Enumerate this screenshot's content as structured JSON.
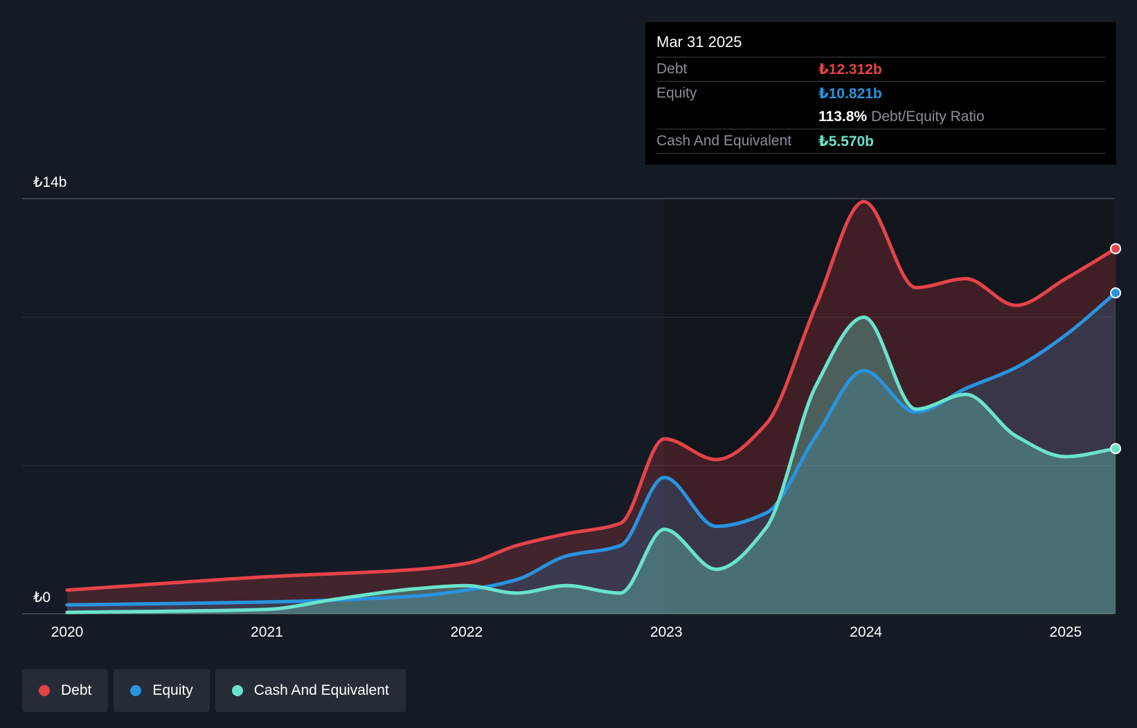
{
  "colors": {
    "debt": "#e5434a",
    "equity": "#2894e0",
    "cash": "#6ae3cc",
    "background": "#151b24"
  },
  "tooltip": {
    "date": "Mar 31 2025",
    "debt_label": "Debt",
    "debt_value": "₺12.312b",
    "equity_label": "Equity",
    "equity_value": "₺10.821b",
    "ratio_value": "113.8%",
    "ratio_label": "Debt/Equity Ratio",
    "cash_label": "Cash And Equivalent",
    "cash_value": "₺5.570b"
  },
  "legend": {
    "debt": "Debt",
    "equity": "Equity",
    "cash": "Cash And Equivalent"
  },
  "chart_data": {
    "type": "area",
    "title": "",
    "xlabel": "",
    "ylabel": "",
    "y_tick_labels": [
      "₺0",
      "₺14b"
    ],
    "ylim": [
      0,
      14
    ],
    "xlim": [
      2019.78,
      2025.25
    ],
    "x_ticks": [
      2020,
      2021,
      2022,
      2023,
      2024,
      2025
    ],
    "x_tick_labels": [
      "2020",
      "2021",
      "2022",
      "2023",
      "2024",
      "2025"
    ],
    "gridlines": [
      0,
      5,
      10,
      14
    ],
    "highlight_start": 2022.99,
    "series": [
      {
        "name": "Debt",
        "key": "debt",
        "x": [
          2020.0,
          2021.0,
          2021.75,
          2022.0,
          2022.25,
          2022.5,
          2022.77,
          2022.99,
          2023.25,
          2023.5,
          2023.75,
          2023.99,
          2024.25,
          2024.5,
          2024.75,
          2025.0,
          2025.25
        ],
        "y": [
          0.8,
          1.25,
          1.5,
          1.7,
          2.3,
          2.7,
          3.05,
          5.9,
          5.2,
          6.4,
          10.4,
          13.9,
          11.0,
          11.3,
          10.4,
          11.3,
          12.312
        ]
      },
      {
        "name": "Equity",
        "key": "equity",
        "x": [
          2020.0,
          2021.0,
          2021.75,
          2022.0,
          2022.25,
          2022.5,
          2022.77,
          2022.99,
          2023.25,
          2023.5,
          2023.75,
          2023.99,
          2024.25,
          2024.5,
          2024.75,
          2025.0,
          2025.25
        ],
        "y": [
          0.3,
          0.4,
          0.6,
          0.8,
          1.15,
          1.95,
          2.3,
          4.6,
          2.95,
          3.4,
          6.0,
          8.2,
          6.8,
          7.6,
          8.3,
          9.4,
          10.821
        ]
      },
      {
        "name": "Cash And Equivalent",
        "key": "cash",
        "x": [
          2020.0,
          2021.0,
          2021.35,
          2021.75,
          2022.0,
          2022.25,
          2022.5,
          2022.77,
          2022.99,
          2023.25,
          2023.5,
          2023.75,
          2023.99,
          2024.25,
          2024.5,
          2024.75,
          2025.0,
          2025.25
        ],
        "y": [
          0.05,
          0.15,
          0.5,
          0.85,
          0.95,
          0.7,
          0.95,
          0.7,
          2.85,
          1.5,
          2.9,
          7.7,
          10.0,
          6.9,
          7.4,
          6.0,
          5.3,
          5.57
        ]
      }
    ]
  }
}
